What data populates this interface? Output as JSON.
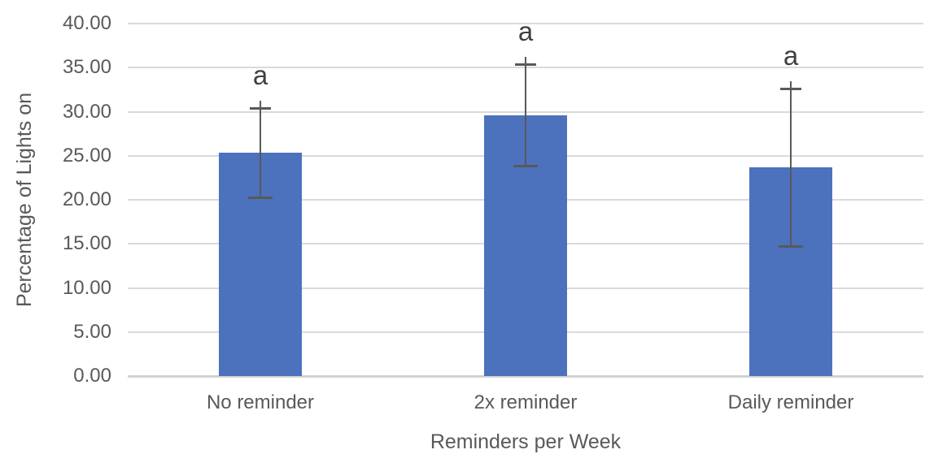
{
  "chart_data": {
    "type": "bar",
    "categories": [
      "No reminder",
      "2x reminder",
      "Daily reminder"
    ],
    "values": [
      25.3,
      29.6,
      23.7
    ],
    "error_plus": [
      5.1,
      5.8,
      8.9
    ],
    "error_minus": [
      5.1,
      5.8,
      9.0
    ],
    "sig_labels": [
      "a",
      "a",
      "a"
    ],
    "xlabel": "Reminders per Week",
    "ylabel": "Percentage of Lights on",
    "ylim": [
      0,
      40
    ],
    "ytick_step": 5,
    "ytick_labels": [
      "0.00",
      "5.00",
      "10.00",
      "15.00",
      "20.00",
      "25.00",
      "30.00",
      "35.00",
      "40.00"
    ],
    "grid": true,
    "legend": false,
    "colors": {
      "bar": "#4C72BE",
      "gridline": "#DADADA",
      "axis_line": "#D2D2D2",
      "tick_text": "#595959",
      "axis_title_text": "#595959",
      "error_bar": "#595959",
      "sig_label_text": "#3F3F3F",
      "background": "#FFFFFF"
    }
  }
}
